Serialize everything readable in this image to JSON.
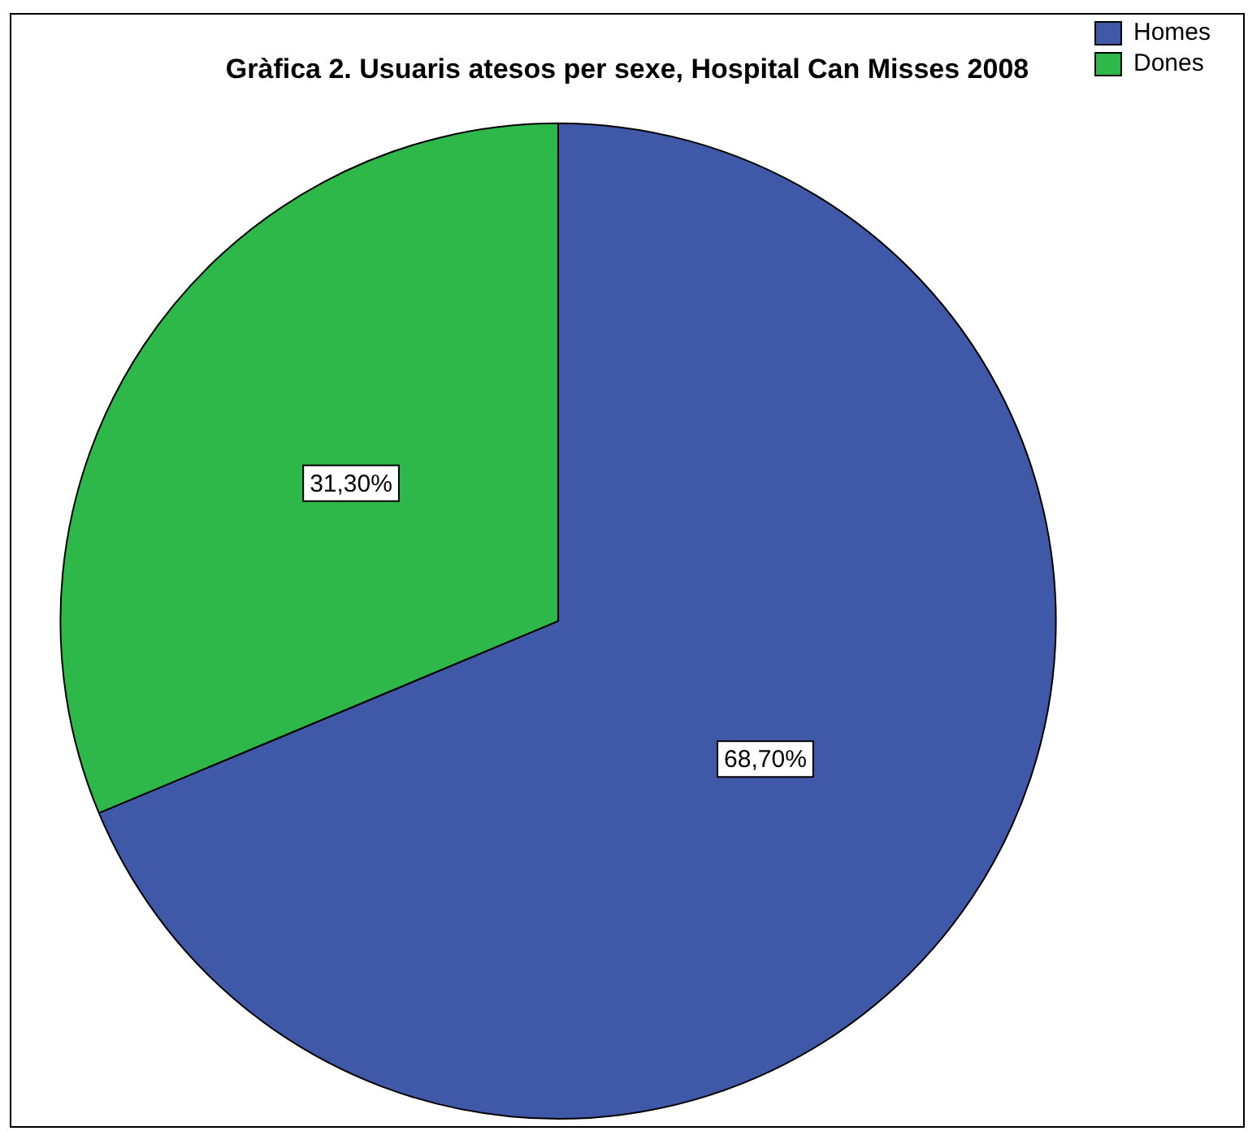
{
  "chart_data": {
    "type": "pie",
    "title": "Gràfica 2. Usuaris atesos per sexe, Hospital Can Misses 2008",
    "categories": [
      "Homes",
      "Dones"
    ],
    "values": [
      68.7,
      31.3
    ],
    "colors": [
      "#3f58a8",
      "#2eb84a"
    ],
    "value_labels": [
      "68,70%",
      "31,30%"
    ],
    "legend": "top right"
  }
}
